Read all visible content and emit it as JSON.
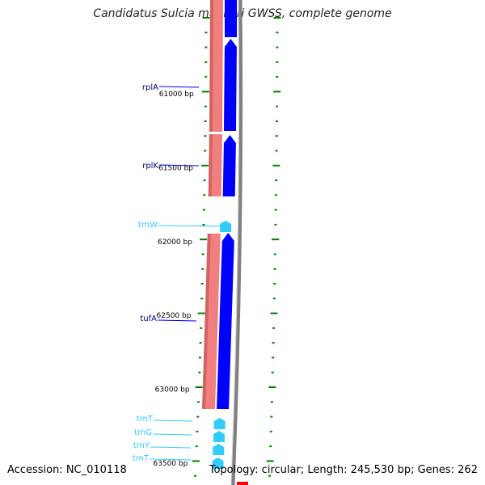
{
  "map": {
    "title": "Candidatus Sulcia muelleri GWSS, complete genome",
    "accession_text": "Accession: NC_010118",
    "summary_text": "Topology: circular; Length: 245,530 bp; Genes: 262"
  },
  "colors": {
    "cds_forward": "#0000ff",
    "trna": "#33ccff",
    "gc_band": "#f08080",
    "ticks": "#008000",
    "backbone": "#808080",
    "rrna_marker": "#ff0000"
  },
  "ruler": [
    {
      "label": "61000 bp",
      "bp": 61000
    },
    {
      "label": "61500 bp",
      "bp": 61500
    },
    {
      "label": "62000 bp",
      "bp": 62000
    },
    {
      "label": "62500 bp",
      "bp": 62500
    },
    {
      "label": "63000 bp",
      "bp": 63000
    },
    {
      "label": "63500 bp",
      "bp": 63500
    }
  ],
  "features": [
    {
      "name": "rplA",
      "type": "CDS"
    },
    {
      "name": "rplK",
      "type": "CDS"
    },
    {
      "name": "trnW",
      "type": "tRNA"
    },
    {
      "name": "tufA",
      "type": "CDS"
    },
    {
      "name": "trnT",
      "type": "tRNA"
    },
    {
      "name": "trnG",
      "type": "tRNA"
    },
    {
      "name": "trnY",
      "type": "tRNA"
    },
    {
      "name": "trnT",
      "type": "tRNA"
    }
  ]
}
